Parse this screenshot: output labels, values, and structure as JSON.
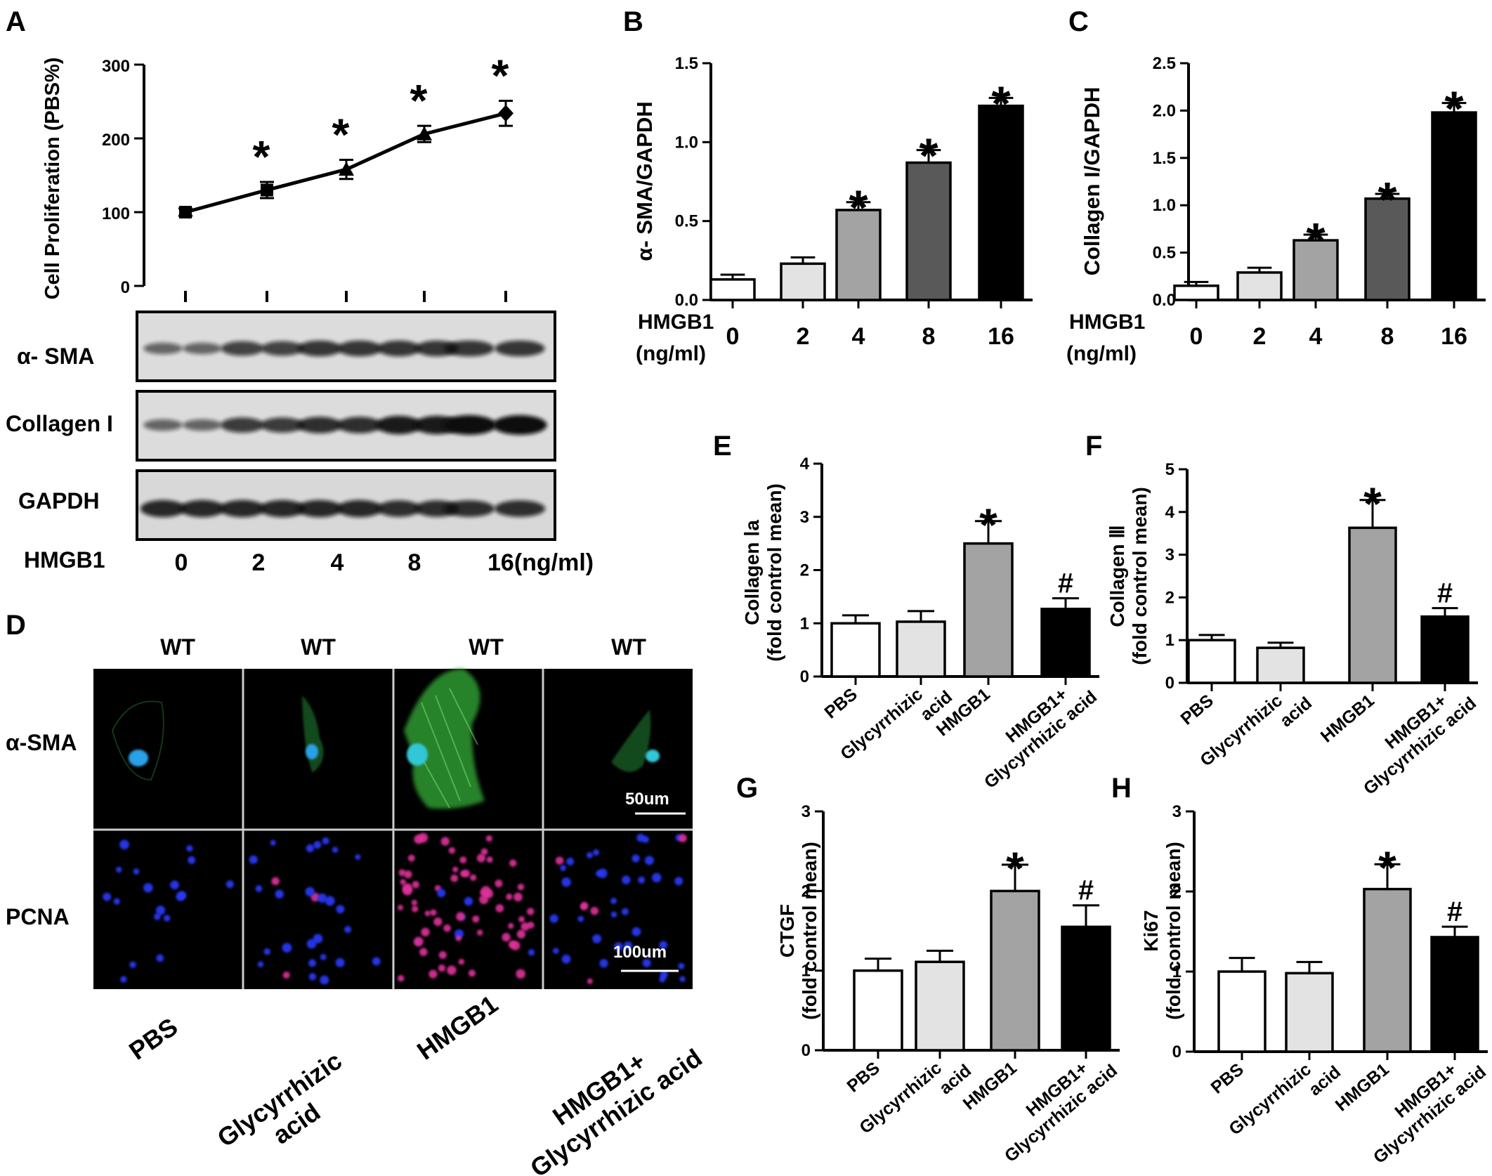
{
  "chart_data": [
    {
      "panel": "A",
      "type": "line",
      "ylabel": "Cell Proliferation (PBS%)",
      "y_ticks": [
        "0",
        "100",
        "200",
        "300"
      ],
      "ylim": [
        0,
        300
      ],
      "x": [
        0,
        2,
        4,
        8,
        16
      ],
      "values": [
        100,
        130,
        158,
        206,
        234
      ],
      "errors": [
        5,
        11,
        13,
        11,
        17
      ],
      "significance": [
        "",
        "*",
        "*",
        "*",
        "*"
      ],
      "markers": [
        "square",
        "square",
        "triangle",
        "triangle",
        "diamond"
      ]
    },
    {
      "panel": "B",
      "type": "bar",
      "ylabel": "α- SMA/GAPDH",
      "y_ticks": [
        "0.0",
        "0.5",
        "1.0",
        "1.5"
      ],
      "ylim": [
        0,
        1.5
      ],
      "x_title": [
        "HMGB1",
        "(ng/ml)"
      ],
      "categories": [
        "0",
        "2",
        "4",
        "8",
        "16"
      ],
      "values": [
        0.13,
        0.23,
        0.57,
        0.87,
        1.23
      ],
      "errors": [
        0.03,
        0.04,
        0.05,
        0.08,
        0.05
      ],
      "colors": [
        "#ffffff",
        "#e3e3e3",
        "#a3a3a3",
        "#595959",
        "#000000"
      ],
      "significance": [
        "",
        "",
        "*",
        "*",
        "*"
      ]
    },
    {
      "panel": "C",
      "type": "bar",
      "ylabel": "Collagen  I/GAPDH",
      "y_ticks": [
        "0.0",
        "0.5",
        "1.0",
        "1.5",
        "2.0",
        "2.5"
      ],
      "ylim": [
        0,
        2.5
      ],
      "x_title": [
        "HMGB1",
        "(ng/ml)"
      ],
      "categories": [
        "0",
        "2",
        "4",
        "8",
        "16"
      ],
      "values": [
        0.15,
        0.29,
        0.63,
        1.07,
        1.98
      ],
      "errors": [
        0.04,
        0.05,
        0.06,
        0.05,
        0.1
      ],
      "colors": [
        "#ffffff",
        "#e3e3e3",
        "#a3a3a3",
        "#595959",
        "#000000"
      ],
      "significance": [
        "",
        "",
        "*",
        "*",
        "*"
      ]
    },
    {
      "panel": "E",
      "type": "bar",
      "ylabel": [
        "Collagen  Ⅰa",
        "(fold control mean)"
      ],
      "y_ticks": [
        "0",
        "1",
        "2",
        "3",
        "4"
      ],
      "ylim": [
        0,
        4
      ],
      "categories": [
        "PBS",
        "Glycyrrhizic acid",
        "HMGB1",
        "HMGB1+ Glycyrrhizic acid"
      ],
      "values": [
        1.0,
        1.03,
        2.5,
        1.27
      ],
      "errors": [
        0.15,
        0.2,
        0.42,
        0.2
      ],
      "colors": [
        "#ffffff",
        "#e3e3e3",
        "#a3a3a3",
        "#000000"
      ],
      "significance": [
        "",
        "",
        "*",
        "#"
      ]
    },
    {
      "panel": "F",
      "type": "bar",
      "ylabel": [
        "Collagen Ⅲ",
        "(fold control mean)"
      ],
      "y_ticks": [
        "0",
        "1",
        "2",
        "3",
        "4",
        "5"
      ],
      "ylim": [
        0,
        5
      ],
      "categories": [
        "PBS",
        "Glycyrrhizic acid",
        "HMGB1",
        "HMGB1+ Glycyrrhizic acid"
      ],
      "values": [
        1.0,
        0.82,
        3.63,
        1.55
      ],
      "errors": [
        0.12,
        0.12,
        0.65,
        0.2
      ],
      "colors": [
        "#ffffff",
        "#e3e3e3",
        "#a3a3a3",
        "#000000"
      ],
      "significance": [
        "",
        "",
        "*",
        "#"
      ]
    },
    {
      "panel": "G",
      "type": "bar",
      "ylabel": [
        "CTGF",
        "(fold control mean)"
      ],
      "y_ticks": [
        "0",
        "1",
        "2",
        "3"
      ],
      "ylim": [
        0,
        3
      ],
      "categories": [
        "PBS",
        "Glycyrrhizic acid",
        "HMGB1",
        "HMGB1+ Glycyrrhizic acid"
      ],
      "values": [
        1.0,
        1.11,
        2.0,
        1.55
      ],
      "errors": [
        0.15,
        0.14,
        0.33,
        0.27
      ],
      "colors": [
        "#ffffff",
        "#e3e3e3",
        "#a3a3a3",
        "#000000"
      ],
      "significance": [
        "",
        "",
        "*",
        "#"
      ]
    },
    {
      "panel": "H",
      "type": "bar",
      "ylabel": [
        "Ki67",
        "(fold control mean)"
      ],
      "y_ticks": [
        "0",
        "1",
        "2",
        "3"
      ],
      "ylim": [
        0,
        3
      ],
      "categories": [
        "PBS",
        "Glycyrrhizic acid",
        "HMGB1",
        "HMGB1+ Glycyrrhizic acid"
      ],
      "values": [
        1.0,
        0.98,
        2.03,
        1.43
      ],
      "errors": [
        0.17,
        0.14,
        0.31,
        0.13
      ],
      "colors": [
        "#ffffff",
        "#e3e3e3",
        "#a3a3a3",
        "#000000"
      ],
      "significance": [
        "",
        "",
        "*",
        "#"
      ]
    }
  ],
  "panel_labels": [
    "A",
    "B",
    "C",
    "D",
    "E",
    "F",
    "G",
    "H"
  ],
  "western_blot": {
    "rows": [
      "α- SMA",
      "Collagen I",
      "GAPDH"
    ],
    "x_title": "HMGB1",
    "doses": [
      "0",
      "2",
      "4",
      "8",
      "16(ng/ml)"
    ],
    "band_intensity": [
      [
        0.35,
        0.6,
        0.7,
        0.7,
        0.7
      ],
      [
        0.35,
        0.65,
        0.75,
        0.9,
        1.0
      ],
      [
        0.8,
        0.8,
        0.8,
        0.75,
        0.75
      ]
    ]
  },
  "microscopy": {
    "column_headers": [
      "WT",
      "WT",
      "WT",
      "WT"
    ],
    "rows": [
      "α-SMA",
      "PCNA"
    ],
    "groups": [
      "PBS",
      "Glycyrrhizic acid",
      "HMGB1",
      "HMGB1+ Glycyrrhizic acid"
    ],
    "scale_bars": [
      "50um",
      "100um"
    ]
  }
}
